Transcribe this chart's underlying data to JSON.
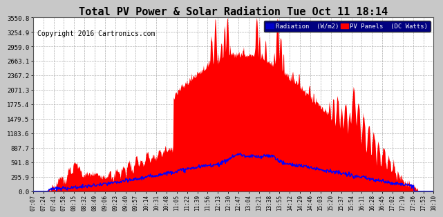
{
  "title": "Total PV Power & Solar Radiation Tue Oct 11 18:14",
  "copyright": "Copyright 2016 Cartronics.com",
  "legend_labels": [
    "Radiation  (W/m2)",
    "PV Panels  (DC Watts)"
  ],
  "background_color": "#c8c8c8",
  "plot_background": "#ffffff",
  "grid_color": "#999999",
  "title_fontsize": 11,
  "copyright_fontsize": 7,
  "ytick_values": [
    0.0,
    295.9,
    591.8,
    887.7,
    1183.6,
    1479.5,
    1775.4,
    2071.3,
    2367.2,
    2663.1,
    2959.0,
    3254.9,
    3550.8
  ],
  "ylim": [
    0,
    3550.8
  ],
  "time_labels": [
    "07:07",
    "07:24",
    "07:41",
    "07:58",
    "08:15",
    "08:32",
    "08:49",
    "09:06",
    "09:23",
    "09:40",
    "09:57",
    "10:14",
    "10:31",
    "10:48",
    "11:05",
    "11:22",
    "11:39",
    "11:56",
    "12:13",
    "12:30",
    "12:47",
    "13:04",
    "13:21",
    "13:38",
    "13:55",
    "14:12",
    "14:29",
    "14:46",
    "15:03",
    "15:20",
    "15:37",
    "15:54",
    "16:11",
    "16:28",
    "16:45",
    "17:02",
    "17:19",
    "17:36",
    "17:53",
    "18:10"
  ]
}
